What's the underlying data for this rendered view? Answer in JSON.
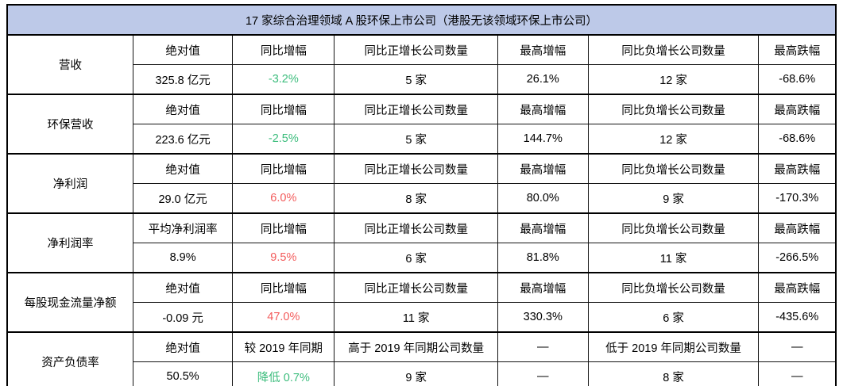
{
  "title": "17 家综合治理领域 A 股环保上市公司（港股无该领域环保上市公司）",
  "colors": {
    "header_bg": "#bdc9e8",
    "decline_green": "#3dbd7d",
    "growth_red": "#f35b5b",
    "border": "#000000"
  },
  "rows": [
    {
      "label": "营收",
      "headers": [
        "绝对值",
        "同比增幅",
        "同比正增长公司数量",
        "最高增幅",
        "同比负增长公司数量",
        "最高跌幅"
      ],
      "values": [
        "325.8 亿元",
        "-3.2%",
        "5 家",
        "26.1%",
        "12 家",
        "-68.6%"
      ],
      "tones": [
        null,
        "down",
        null,
        null,
        null,
        null
      ]
    },
    {
      "label": "环保营收",
      "headers": [
        "绝对值",
        "同比增幅",
        "同比正增长公司数量",
        "最高增幅",
        "同比负增长公司数量",
        "最高跌幅"
      ],
      "values": [
        "223.6 亿元",
        "-2.5%",
        "5 家",
        "144.7%",
        "12 家",
        "-68.6%"
      ],
      "tones": [
        null,
        "down",
        null,
        null,
        null,
        null
      ]
    },
    {
      "label": "净利润",
      "headers": [
        "绝对值",
        "同比增幅",
        "同比正增长公司数量",
        "最高增幅",
        "同比负增长公司数量",
        "最高跌幅"
      ],
      "values": [
        "29.0 亿元",
        "6.0%",
        "8 家",
        "80.0%",
        "9 家",
        "-170.3%"
      ],
      "tones": [
        null,
        "up",
        null,
        null,
        null,
        null
      ]
    },
    {
      "label": "净利润率",
      "headers": [
        "平均净利润率",
        "同比增幅",
        "同比正增长公司数量",
        "最高增幅",
        "同比负增长公司数量",
        "最高跌幅"
      ],
      "values": [
        "8.9%",
        "9.5%",
        "6 家",
        "81.8%",
        "11 家",
        "-266.5%"
      ],
      "tones": [
        null,
        "up",
        null,
        null,
        null,
        null
      ]
    },
    {
      "label": "每股现金流量净额",
      "headers": [
        "绝对值",
        "同比增幅",
        "同比正增长公司数量",
        "最高增幅",
        "同比负增长公司数量",
        "最高跌幅"
      ],
      "values": [
        "-0.09 元",
        "47.0%",
        "11 家",
        "330.3%",
        "6 家",
        "-435.6%"
      ],
      "tones": [
        null,
        "up",
        null,
        null,
        null,
        null
      ]
    },
    {
      "label": "资产负债率",
      "headers": [
        "绝对值",
        "较 2019 年同期",
        "高于 2019 年同期公司数量",
        "—",
        "低于 2019 年同期公司数量",
        "—"
      ],
      "values": [
        "50.5%",
        "降低 0.7%",
        "9 家",
        "—",
        "8 家",
        "—"
      ],
      "tones": [
        null,
        "down",
        null,
        null,
        null,
        null
      ]
    }
  ]
}
